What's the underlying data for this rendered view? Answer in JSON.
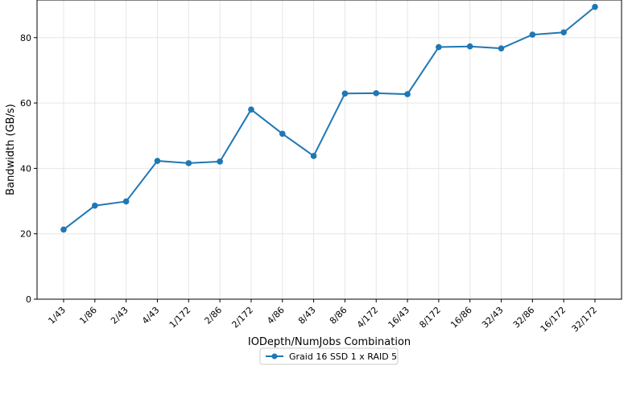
{
  "chart_data": {
    "type": "line",
    "title": "",
    "xlabel": "IODepth/NumJobs Combination",
    "ylabel": "Bandwidth (GB/s)",
    "categories": [
      "1/43",
      "1/86",
      "2/43",
      "4/43",
      "1/172",
      "2/86",
      "2/172",
      "4/86",
      "8/43",
      "8/86",
      "4/172",
      "16/43",
      "8/172",
      "16/86",
      "32/43",
      "32/86",
      "16/172",
      "32/172"
    ],
    "series": [
      {
        "name": "Graid 16 SSD 1 x RAID 5",
        "color": "#1f77b4",
        "values": [
          21.3,
          28.6,
          29.9,
          42.3,
          41.6,
          42.1,
          58.0,
          50.6,
          43.8,
          62.9,
          63.0,
          62.7,
          77.1,
          77.3,
          76.7,
          80.9,
          81.6,
          89.4
        ]
      }
    ],
    "ylim": [
      0,
      91.5
    ],
    "yticks": [
      0,
      20,
      40,
      60,
      80
    ],
    "grid": true,
    "legend_position": "bottom-center"
  }
}
